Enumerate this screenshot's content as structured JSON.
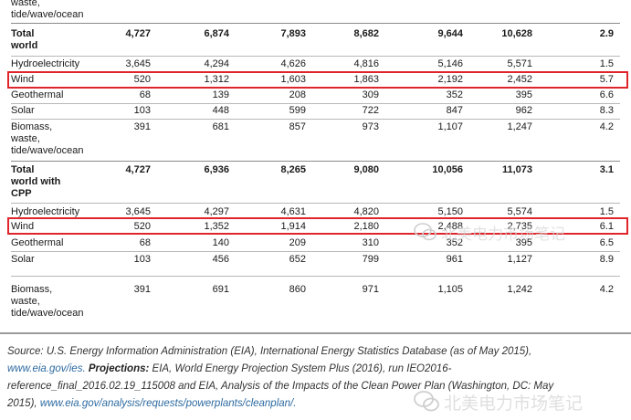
{
  "rows": [
    {
      "label_lines": [
        "waste,",
        "tide/wave/ocean"
      ],
      "bold": false,
      "values": []
    },
    {
      "label_lines": [
        "Total",
        "world"
      ],
      "bold": true,
      "values": [
        "4,727",
        "6,874",
        "7,893",
        "8,682",
        "9,644",
        "10,628",
        "2.9"
      ]
    },
    {
      "label_lines": [
        "Hydroelectricity"
      ],
      "bold": false,
      "values": [
        "3,645",
        "4,294",
        "4,626",
        "4,816",
        "5,146",
        "5,571",
        "1.5"
      ]
    },
    {
      "label_lines": [
        "Wind"
      ],
      "bold": false,
      "values": [
        "520",
        "1,312",
        "1,603",
        "1,863",
        "2,192",
        "2,452",
        "5.7"
      ]
    },
    {
      "label_lines": [
        "Geothermal"
      ],
      "bold": false,
      "values": [
        "68",
        "139",
        "208",
        "309",
        "352",
        "395",
        "6.6"
      ]
    },
    {
      "label_lines": [
        "Solar"
      ],
      "bold": false,
      "values": [
        "103",
        "448",
        "599",
        "722",
        "847",
        "962",
        "8.3"
      ]
    },
    {
      "label_lines": [
        "Biomass,",
        "waste,",
        "tide/wave/ocean"
      ],
      "bold": false,
      "values": [
        "391",
        "681",
        "857",
        "973",
        "1,107",
        "1,247",
        "4.2"
      ]
    },
    {
      "label_lines": [
        "Total",
        "world with",
        "CPP"
      ],
      "bold": true,
      "values": [
        "4,727",
        "6,936",
        "8,265",
        "9,080",
        "10,056",
        "11,073",
        "3.1"
      ]
    },
    {
      "label_lines": [
        "Hydroelectricity"
      ],
      "bold": false,
      "values": [
        "3,645",
        "4,297",
        "4,631",
        "4,820",
        "5,150",
        "5,574",
        "1.5"
      ]
    },
    {
      "label_lines": [
        "Wind"
      ],
      "bold": false,
      "values": [
        "520",
        "1,352",
        "1,914",
        "2,180",
        "2,488",
        "2,735",
        "6.1"
      ]
    },
    {
      "label_lines": [
        "Geothermal"
      ],
      "bold": false,
      "values": [
        "68",
        "140",
        "209",
        "310",
        "352",
        "395",
        "6.5"
      ]
    },
    {
      "label_lines": [
        "Solar"
      ],
      "bold": false,
      "values": [
        "103",
        "456",
        "652",
        "799",
        "961",
        "1,127",
        "8.9"
      ]
    },
    {
      "label_lines": [
        "Biomass,",
        "waste,",
        "tide/wave/ocean"
      ],
      "bold": false,
      "values": [
        "391",
        "691",
        "860",
        "971",
        "1,105",
        "1,242",
        "4.2"
      ]
    }
  ],
  "source": {
    "line1": "Source: U.S. Energy Information Administration (EIA), International Energy Statistics Database (as of May 2015),",
    "link1": "www.eia.gov/ies.",
    "projections_label": "Projections:",
    "line2_rest": " EIA, World Energy Projection System Plus (2016), run IEO2016-",
    "line3": "reference_final_2016.02.19_115008 and EIA, Analysis of the Impacts of the Clean Power Plan (Washington, DC: May",
    "line4_pre": "2015), ",
    "link2": "www.eia.gov/analysis/requests/powerplants/cleanplan/."
  },
  "watermark": {
    "text_top": "北美电力市场笔记",
    "text_bottom": "北美电力市场笔记"
  },
  "colors": {
    "highlight": "#e0242b",
    "link": "#2d6aa0"
  }
}
